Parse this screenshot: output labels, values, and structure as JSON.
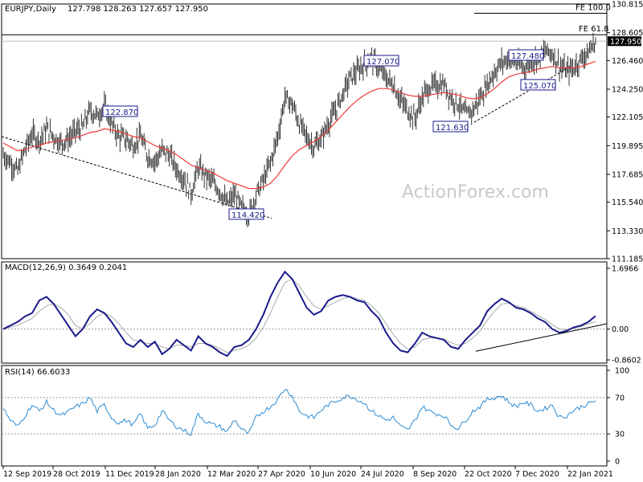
{
  "chart_data": [
    {
      "type": "candlestick",
      "panel": "price",
      "title": "EURJPY,Daily",
      "ohlc": "127.798 128.263 127.657 127.950",
      "y_ticks": [
        "130.815",
        "128.605",
        "126.460",
        "124.250",
        "122.105",
        "119.895",
        "117.685",
        "115.540",
        "113.330",
        "111.185"
      ],
      "ylim": [
        111.185,
        130.815
      ],
      "last_price": "127.950",
      "fib_levels": [
        {
          "label": "FE 100.0",
          "value": 130.1
        },
        {
          "label": "FE 61.8",
          "value": 128.45
        }
      ],
      "swing_labels": [
        {
          "text": "122.870",
          "value": 122.87
        },
        {
          "text": "114.420",
          "value": 114.42
        },
        {
          "text": "127.070",
          "value": 127.07
        },
        {
          "text": "121.630",
          "value": 121.63
        },
        {
          "text": "127.480",
          "value": 127.48
        },
        {
          "text": "125.070",
          "value": 125.07
        }
      ],
      "close_series": [
        119.2,
        118.6,
        117.9,
        119.6,
        120.8,
        120.3,
        121.2,
        120.6,
        120.1,
        120.4,
        121.0,
        121.3,
        122.6,
        122.2,
        122.9,
        121.6,
        120.6,
        120.4,
        119.9,
        120.6,
        119.1,
        118.7,
        119.5,
        119.2,
        118.1,
        117.4,
        116.2,
        118.2,
        117.6,
        117.1,
        116.4,
        115.4,
        116.1,
        115.1,
        114.6,
        116.1,
        117.2,
        118.6,
        120.6,
        123.6,
        123.1,
        121.6,
        120.6,
        119.8,
        120.4,
        121.6,
        122.6,
        123.9,
        125.1,
        125.6,
        126.2,
        126.6,
        125.9,
        125.1,
        124.6,
        123.4,
        122.6,
        122.0,
        123.6,
        124.4,
        124.6,
        124.6,
        123.6,
        123.1,
        122.3,
        122.6,
        123.6,
        124.6,
        125.6,
        126.3,
        126.6,
        126.3,
        125.9,
        126.3,
        126.6,
        127.2,
        127.0,
        126.1,
        125.6,
        125.9,
        126.6,
        127.1,
        127.95
      ],
      "ma_series": [
        120.1,
        119.8,
        119.5,
        119.6,
        119.8,
        119.9,
        120.1,
        120.2,
        120.3,
        120.4,
        120.5,
        120.7,
        120.9,
        121.0,
        121.2,
        121.1,
        121.0,
        120.8,
        120.6,
        120.5,
        120.2,
        119.9,
        119.7,
        119.5,
        119.2,
        118.8,
        118.4,
        118.2,
        118.0,
        117.8,
        117.5,
        117.2,
        117.0,
        116.8,
        116.6,
        116.6,
        116.7,
        117.0,
        117.6,
        118.4,
        119.1,
        119.6,
        119.9,
        120.2,
        120.6,
        121.1,
        121.7,
        122.3,
        122.9,
        123.4,
        123.8,
        124.1,
        124.3,
        124.3,
        124.2,
        124.0,
        123.8,
        123.7,
        123.7,
        123.8,
        123.9,
        124.0,
        123.9,
        123.8,
        123.6,
        123.5,
        123.6,
        123.9,
        124.3,
        124.8,
        125.2,
        125.4,
        125.5,
        125.6,
        125.8,
        125.9,
        126.0,
        125.9,
        125.9,
        125.9,
        126.0,
        126.2,
        126.4
      ],
      "ma_color": "#ee3a3a",
      "bar_color": "#333333"
    },
    {
      "type": "line",
      "panel": "macd",
      "title": "MACD(12,26,9) 0.3649 0.2041",
      "y_ticks": [
        "1.6966",
        "0.00",
        "-0.8602"
      ],
      "ylim": [
        -0.8602,
        1.6966
      ],
      "zero_label": "0.00",
      "macd_series": [
        0.0,
        0.1,
        0.2,
        0.35,
        0.45,
        0.8,
        0.9,
        0.7,
        0.4,
        0.1,
        -0.2,
        0.0,
        0.35,
        0.55,
        0.45,
        0.2,
        -0.1,
        -0.4,
        -0.5,
        -0.3,
        -0.5,
        -0.35,
        -0.7,
        -0.55,
        -0.3,
        -0.45,
        -0.6,
        -0.2,
        -0.4,
        -0.5,
        -0.65,
        -0.75,
        -0.5,
        -0.45,
        -0.3,
        0.0,
        0.4,
        0.9,
        1.3,
        1.6,
        1.4,
        1.0,
        0.6,
        0.4,
        0.5,
        0.8,
        0.9,
        0.95,
        0.9,
        0.8,
        0.75,
        0.5,
        0.3,
        -0.1,
        -0.4,
        -0.6,
        -0.65,
        -0.4,
        -0.1,
        -0.2,
        -0.25,
        -0.3,
        -0.5,
        -0.55,
        -0.3,
        -0.1,
        0.1,
        0.5,
        0.7,
        0.85,
        0.75,
        0.6,
        0.55,
        0.45,
        0.3,
        0.2,
        0.0,
        -0.1,
        -0.05,
        0.05,
        0.1,
        0.2,
        0.3649
      ],
      "signal_series": [
        0.0,
        0.05,
        0.1,
        0.2,
        0.3,
        0.5,
        0.65,
        0.7,
        0.6,
        0.4,
        0.1,
        0.0,
        0.15,
        0.35,
        0.45,
        0.35,
        0.15,
        -0.1,
        -0.3,
        -0.35,
        -0.4,
        -0.4,
        -0.5,
        -0.55,
        -0.45,
        -0.45,
        -0.5,
        -0.4,
        -0.4,
        -0.45,
        -0.55,
        -0.65,
        -0.6,
        -0.55,
        -0.45,
        -0.25,
        0.05,
        0.45,
        0.9,
        1.3,
        1.4,
        1.2,
        0.9,
        0.65,
        0.55,
        0.65,
        0.75,
        0.85,
        0.9,
        0.85,
        0.8,
        0.65,
        0.45,
        0.15,
        -0.15,
        -0.4,
        -0.55,
        -0.5,
        -0.3,
        -0.25,
        -0.25,
        -0.28,
        -0.38,
        -0.45,
        -0.4,
        -0.25,
        -0.05,
        0.25,
        0.5,
        0.7,
        0.72,
        0.65,
        0.6,
        0.5,
        0.38,
        0.28,
        0.12,
        0.0,
        -0.02,
        0.02,
        0.07,
        0.15,
        0.2041
      ],
      "macd_color": "#1a1a8c",
      "signal_color": "#aaaaaa"
    },
    {
      "type": "line",
      "panel": "rsi",
      "title": "RSI(14) 66.6033",
      "y_ticks": [
        "100",
        "70",
        "30",
        "0"
      ],
      "ylim": [
        0,
        100
      ],
      "rsi_series": [
        58,
        45,
        38,
        50,
        62,
        55,
        65,
        56,
        50,
        54,
        60,
        63,
        70,
        55,
        62,
        48,
        42,
        45,
        40,
        52,
        36,
        40,
        55,
        45,
        38,
        34,
        30,
        52,
        44,
        40,
        38,
        32,
        46,
        35,
        30,
        48,
        55,
        60,
        68,
        80,
        72,
        55,
        50,
        48,
        56,
        62,
        66,
        70,
        72,
        68,
        64,
        55,
        50,
        45,
        48,
        38,
        34,
        45,
        60,
        55,
        52,
        50,
        40,
        36,
        45,
        55,
        60,
        68,
        70,
        72,
        65,
        60,
        65,
        62,
        55,
        58,
        62,
        48,
        50,
        56,
        60,
        63,
        66.6
      ],
      "line_color": "#2a8bd4",
      "levels": [
        70,
        30
      ]
    }
  ],
  "x_axis": {
    "labels": [
      "12 Sep 2019",
      "28 Oct 2019",
      "11 Dec 2019",
      "28 Jan 2020",
      "12 Mar 2020",
      "27 Apr 2020",
      "10 Jun 2020",
      "24 Jul 2020",
      "8 Sep 2020",
      "22 Oct 2020",
      "7 Dec 2020",
      "22 Jan 2021"
    ]
  },
  "watermark": "ActionForex.com"
}
